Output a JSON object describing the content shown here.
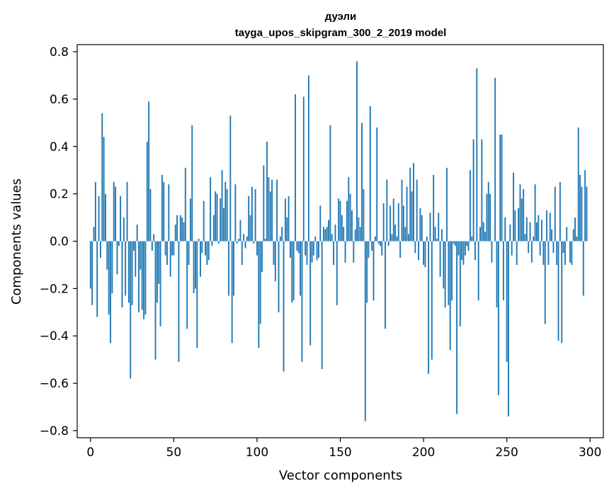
{
  "chart_data": {
    "type": "bar",
    "title": "дуэли",
    "subtitle": "tayga_upos_skipgram_300_2_2019 model",
    "xlabel": "Vector components",
    "ylabel": "Components values",
    "xlim": [
      -8,
      308
    ],
    "ylim": [
      -0.83,
      0.83
    ],
    "x_ticks": [
      0,
      50,
      100,
      150,
      200,
      250,
      300
    ],
    "x_tick_labels": [
      "0",
      "50",
      "100",
      "150",
      "200",
      "250",
      "300"
    ],
    "y_ticks": [
      0.8,
      0.6,
      0.4,
      0.2,
      0.0,
      -0.2,
      -0.4,
      -0.6,
      -0.8
    ],
    "y_tick_labels": [
      "0.8",
      "0.6",
      "0.4",
      "0.2",
      "0.0",
      "−0.2",
      "−0.4",
      "−0.6",
      "−0.8"
    ],
    "grid": false,
    "bar_color": "#1f77b4",
    "values": [
      -0.2,
      -0.27,
      0.06,
      0.25,
      -0.32,
      0.19,
      -0.07,
      0.54,
      0.44,
      0.2,
      -0.12,
      -0.31,
      -0.43,
      -0.22,
      0.25,
      0.23,
      -0.14,
      -0.02,
      0.19,
      -0.28,
      0.1,
      -0.23,
      0.25,
      -0.26,
      -0.58,
      -0.27,
      -0.04,
      -0.15,
      0.07,
      -0.3,
      -0.12,
      -0.29,
      -0.33,
      -0.31,
      0.42,
      0.59,
      0.22,
      -0.04,
      0.03,
      -0.5,
      -0.26,
      -0.18,
      -0.36,
      0.28,
      0.25,
      -0.06,
      -0.1,
      0.24,
      -0.15,
      -0.06,
      -0.06,
      0.07,
      0.11,
      -0.51,
      0.11,
      0.1,
      0.08,
      0.31,
      -0.37,
      -0.1,
      0.18,
      0.49,
      -0.22,
      -0.2,
      -0.45,
      0.01,
      -0.15,
      -0.05,
      0.17,
      -0.06,
      -0.1,
      -0.08,
      0.27,
      -0.02,
      0.11,
      0.21,
      0.2,
      -0.01,
      0.18,
      0.3,
      0.14,
      0.25,
      0.22,
      -0.23,
      0.53,
      -0.43,
      -0.23,
      0.24,
      -0.01,
      0.01,
      0.09,
      -0.1,
      0.03,
      -0.03,
      0.02,
      0.19,
      0.11,
      0.23,
      -0.01,
      0.22,
      -0.06,
      -0.45,
      -0.35,
      -0.13,
      0.32,
      0.01,
      0.42,
      0.27,
      0.21,
      0.26,
      -0.1,
      -0.17,
      0.26,
      -0.3,
      0.02,
      0.06,
      -0.55,
      0.18,
      0.1,
      0.19,
      -0.07,
      -0.26,
      -0.25,
      0.62,
      -0.04,
      -0.05,
      -0.23,
      -0.51,
      0.61,
      -0.06,
      -0.1,
      0.7,
      -0.44,
      -0.09,
      -0.06,
      0.02,
      -0.08,
      -0.07,
      0.15,
      -0.54,
      0.06,
      0.05,
      0.06,
      0.09,
      0.49,
      0.03,
      -0.1,
      0.07,
      -0.27,
      0.18,
      0.17,
      0.11,
      0.06,
      -0.09,
      0.17,
      0.27,
      0.2,
      0.13,
      -0.09,
      0.05,
      0.76,
      0.1,
      0.06,
      0.5,
      0.22,
      -0.76,
      -0.26,
      -0.07,
      0.57,
      -0.04,
      -0.25,
      0.02,
      0.48,
      -0.01,
      -0.02,
      -0.06,
      0.16,
      -0.37,
      0.26,
      -0.02,
      0.15,
      0.03,
      0.18,
      0.07,
      0.02,
      0.16,
      -0.07,
      0.26,
      0.15,
      0.06,
      0.23,
      0.03,
      0.31,
      0.21,
      0.33,
      -0.05,
      0.26,
      -0.08,
      0.14,
      0.11,
      -0.1,
      -0.11,
      0.02,
      -0.56,
      0.12,
      -0.5,
      0.28,
      0.06,
      0.01,
      0.12,
      -0.15,
      0.05,
      -0.2,
      -0.28,
      0.31,
      -0.27,
      -0.46,
      -0.25,
      -0.01,
      -0.02,
      -0.73,
      -0.06,
      -0.36,
      -0.08,
      -0.1,
      -0.06,
      -0.02,
      -0.04,
      0.3,
      0.02,
      0.43,
      -0.08,
      0.73,
      -0.25,
      0.06,
      0.43,
      0.08,
      0.04,
      0.2,
      0.25,
      0.2,
      -0.09,
      0.0,
      0.69,
      -0.28,
      -0.65,
      0.45,
      0.45,
      -0.25,
      0.1,
      -0.51,
      -0.74,
      0.07,
      -0.06,
      0.29,
      0.13,
      -0.1,
      0.14,
      0.24,
      0.18,
      0.22,
      0.03,
      0.1,
      -0.05,
      0.08,
      -0.09,
      0.02,
      0.24,
      0.08,
      0.11,
      -0.06,
      0.09,
      -0.1,
      -0.35,
      0.13,
      -0.1,
      0.12,
      0.05,
      -0.05,
      0.23,
      -0.1,
      -0.42,
      0.25,
      -0.43,
      -0.05,
      -0.1,
      0.06,
      0.0,
      -0.09,
      -0.1,
      0.05,
      0.1,
      0.02,
      0.48,
      0.28,
      0.23,
      -0.23,
      0.3,
      0.23
    ]
  }
}
